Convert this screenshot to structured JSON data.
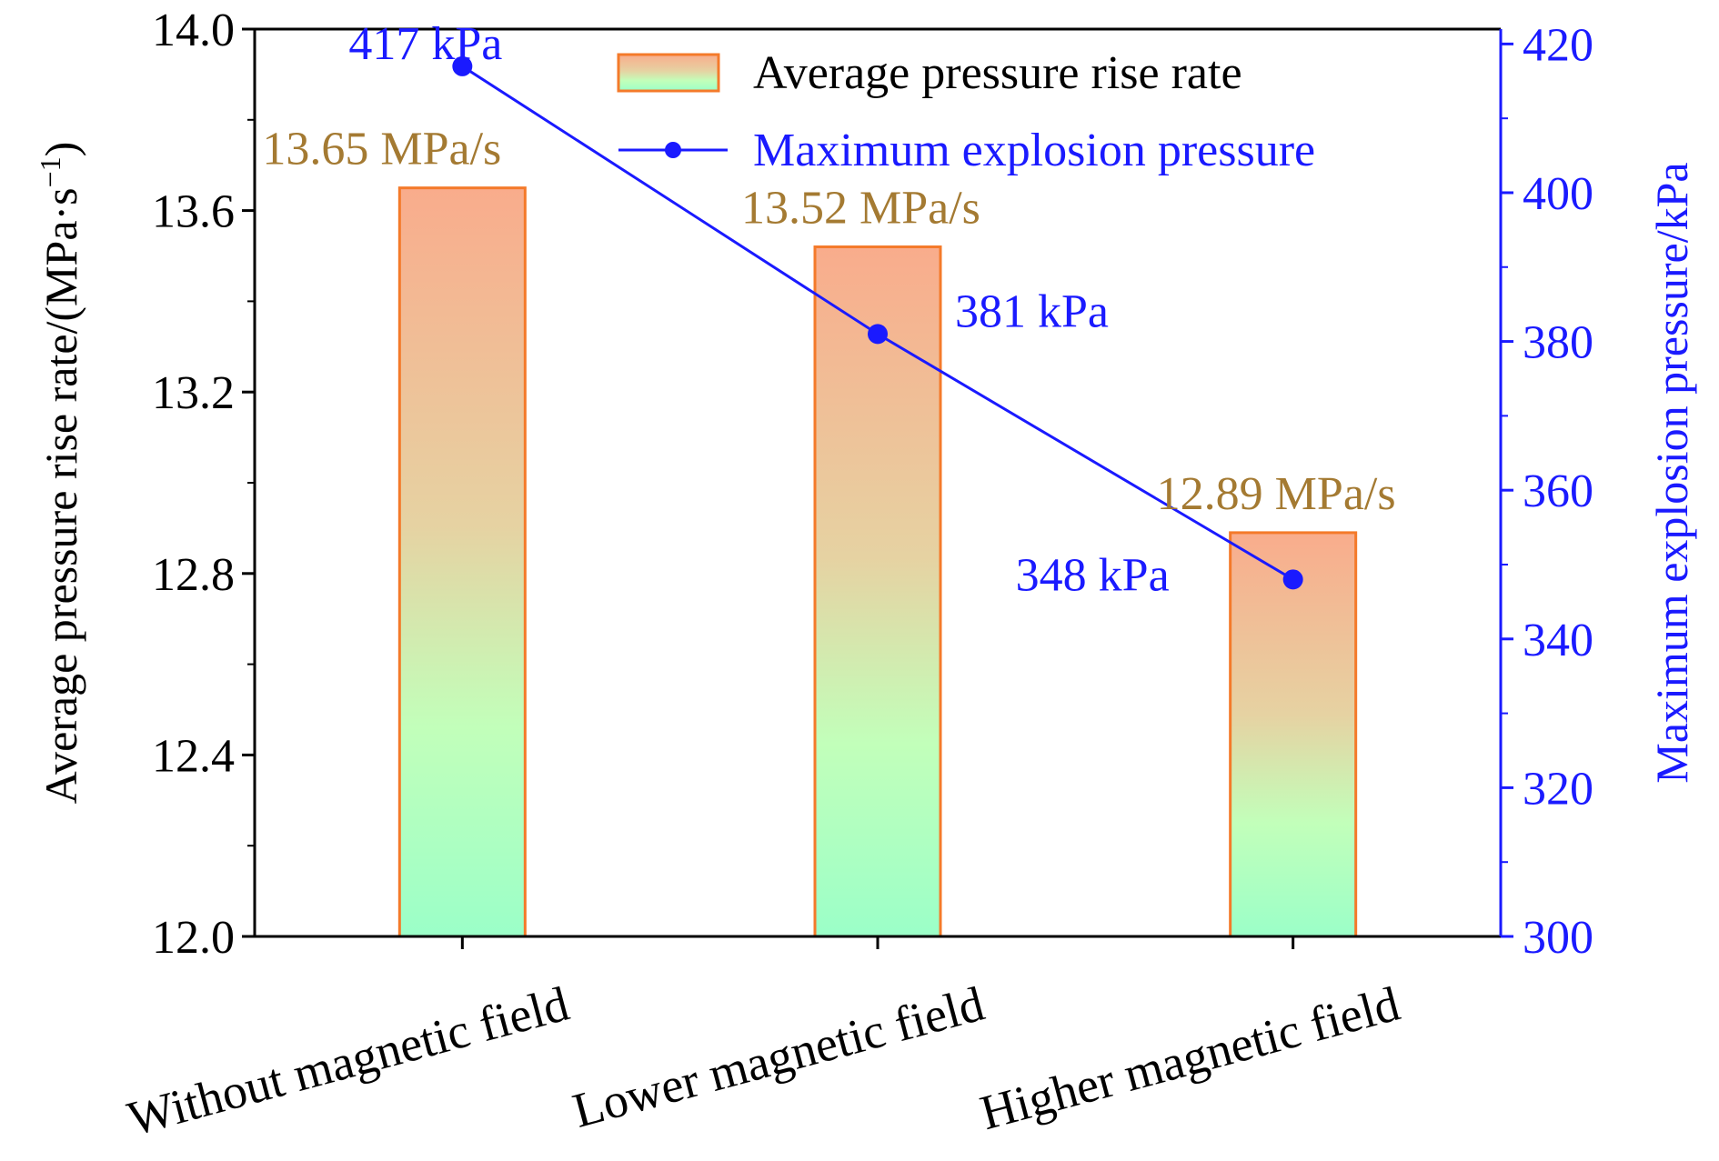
{
  "chart_data": {
    "type": "bar",
    "categories": [
      "Without magnetic field",
      "Lower magnetic field",
      "Higher magnetic field"
    ],
    "ylabel": "Average pressure rise rate/(MPa·s",
    "ylabel_sup": "−1",
    "ylabel_suffix": ")",
    "ylabel_right": "Maximum explosion pressure/kPa",
    "ylim": [
      12.0,
      14.0
    ],
    "yticks": [
      "12.0",
      "12.4",
      "12.8",
      "13.2",
      "13.6",
      "14.0"
    ],
    "ylim_right": [
      300,
      420
    ],
    "yticks_right": [
      "300",
      "320",
      "340",
      "360",
      "380",
      "400",
      "420"
    ],
    "series": [
      {
        "name": "Average pressure rise rate",
        "kind": "bar",
        "axis": "left",
        "values": [
          13.65,
          13.52,
          12.89
        ],
        "labels": [
          "13.65 MPa/s",
          "13.52 MPa/s",
          "12.89 MPa/s"
        ],
        "colors": {
          "top": "#f9ac8c",
          "bottom": "#9bffc8",
          "edge": "#f47a2a"
        }
      },
      {
        "name": "Maximum explosion pressure",
        "kind": "line",
        "axis": "right",
        "values": [
          417,
          381,
          348
        ],
        "labels": [
          "417 kPa",
          "381 kPa",
          "348 kPa"
        ],
        "color": "#1a1aff"
      }
    ],
    "legend": "top-right",
    "grid": false
  }
}
